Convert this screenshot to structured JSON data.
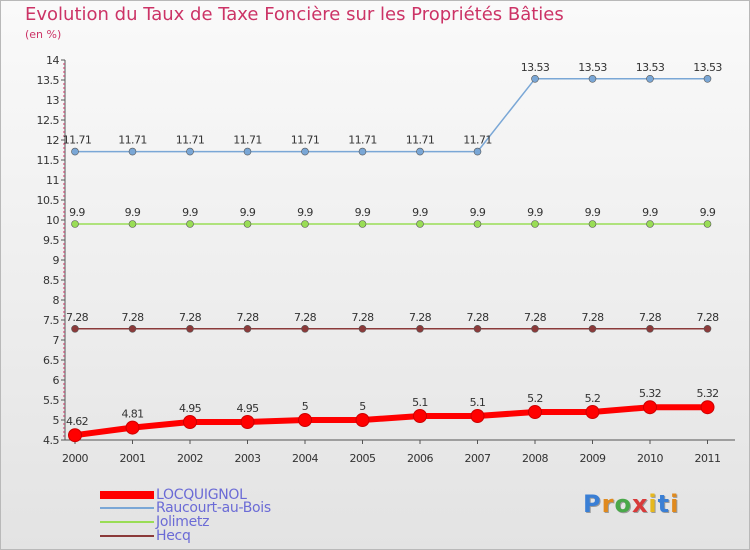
{
  "title": "Evolution du Taux de Taxe Foncière sur les Propriétés Bâties",
  "subtitle": "(en %)",
  "logo_text": "Proxiti",
  "chart_data": {
    "type": "line",
    "title": "Evolution du Taux de Taxe Foncière sur les Propriétés Bâties",
    "ylabel": "(en %)",
    "xlabel": "",
    "categories": [
      "2000",
      "2001",
      "2002",
      "2003",
      "2004",
      "2005",
      "2006",
      "2007",
      "2008",
      "2009",
      "2010",
      "2011"
    ],
    "ylim": [
      4.5,
      14
    ],
    "yticks": [
      4.5,
      5,
      5.5,
      6,
      6.5,
      7,
      7.5,
      8,
      8.5,
      9,
      9.5,
      10,
      10.5,
      11,
      11.5,
      12,
      12.5,
      13,
      13.5,
      14
    ],
    "legend_position": "bottom-left",
    "series": [
      {
        "name": "LOCQUIGNOL",
        "color": "#ff0000",
        "values": [
          4.62,
          4.81,
          4.95,
          4.95,
          5,
          5,
          5.1,
          5.1,
          5.2,
          5.2,
          5.32,
          5.32
        ],
        "labels": [
          "4.62",
          "4.81",
          "4.95",
          "4.95",
          "5",
          "5",
          "5.1",
          "5.1",
          "5.2",
          "5.2",
          "5.32",
          "5.32"
        ]
      },
      {
        "name": "Raucourt-au-Bois",
        "color": "#7aa7d6",
        "values": [
          11.71,
          11.71,
          11.71,
          11.71,
          11.71,
          11.71,
          11.71,
          11.71,
          13.53,
          13.53,
          13.53,
          13.53
        ],
        "labels": [
          "11.71",
          "11.71",
          "11.71",
          "11.71",
          "11.71",
          "11.71",
          "11.71",
          "11.71",
          "13.53",
          "13.53",
          "13.53",
          "13.53"
        ]
      },
      {
        "name": "Jolimetz",
        "color": "#99dd55",
        "values": [
          9.9,
          9.9,
          9.9,
          9.9,
          9.9,
          9.9,
          9.9,
          9.9,
          9.9,
          9.9,
          9.9,
          9.9
        ],
        "labels": [
          "9.9",
          "9.9",
          "9.9",
          "9.9",
          "9.9",
          "9.9",
          "9.9",
          "9.9",
          "9.9",
          "9.9",
          "9.9",
          "9.9"
        ]
      },
      {
        "name": "Hecq",
        "color": "#8b3a3a",
        "values": [
          7.28,
          7.28,
          7.28,
          7.28,
          7.28,
          7.28,
          7.28,
          7.28,
          7.28,
          7.28,
          7.28,
          7.28
        ],
        "labels": [
          "7.28",
          "7.28",
          "7.28",
          "7.28",
          "7.28",
          "7.28",
          "7.28",
          "7.28",
          "7.28",
          "7.28",
          "7.28",
          "7.28"
        ]
      }
    ]
  }
}
